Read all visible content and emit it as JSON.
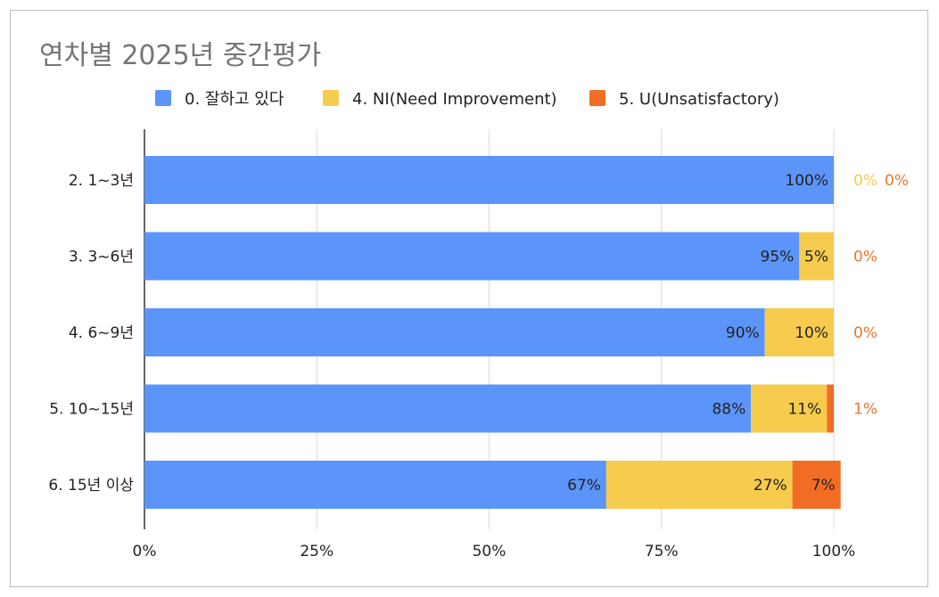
{
  "chart_data": {
    "type": "bar",
    "orientation": "horizontal",
    "stacked": "percent",
    "title": "연차별 2025년 중간평가",
    "categories": [
      "2. 1~3년",
      "3. 3~6년",
      "4. 6~9년",
      "5. 10~15년",
      "6. 15년 이상"
    ],
    "series": [
      {
        "name": "0. 잘하고 있다",
        "color": "#5b95f9",
        "values": [
          100,
          95,
          90,
          88,
          67
        ],
        "labels": [
          "100%",
          "95%",
          "90%",
          "88%",
          "67%"
        ]
      },
      {
        "name": "4. NI(Need Improvement)",
        "color": "#f7cb4d",
        "values": [
          0,
          5,
          10,
          11,
          27
        ],
        "labels": [
          "0%",
          "5%",
          "10%",
          "11%",
          "27%"
        ]
      },
      {
        "name": "5. U(Unsatisfactory)",
        "color": "#f26d24",
        "values": [
          0,
          0,
          0,
          1,
          7
        ],
        "labels": [
          "0%",
          "0%",
          "0%",
          "1%",
          "7%"
        ]
      }
    ],
    "x_ticks": [
      "0%",
      "25%",
      "50%",
      "75%",
      "100%"
    ],
    "xlim": [
      0,
      100
    ],
    "legend_position": "top",
    "grid": true,
    "outside_label_colors": {
      "ni": "#f7cb4d",
      "u": "#e8762d"
    }
  }
}
